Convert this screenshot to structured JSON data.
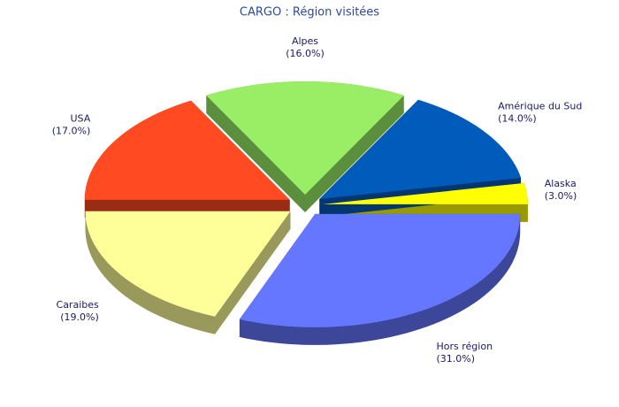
{
  "chart_data": {
    "type": "pie",
    "title": "CARGO : Région visitées",
    "categories": [
      "Alaska",
      "Amérique du Sud",
      "Alpes",
      "USA",
      "Caraibes",
      "Hors région"
    ],
    "values": [
      3,
      14,
      16,
      17,
      19,
      31
    ],
    "value_labels": [
      "(3.0%)",
      "(14.0%)",
      "(16.0%)",
      "(17.0%)",
      "(19.0%)",
      "(31.0%)"
    ],
    "colors": [
      "#ffff00",
      "#005bbb",
      "#99ee66",
      "#ff4a22",
      "#ffff99",
      "#6677ff"
    ]
  }
}
